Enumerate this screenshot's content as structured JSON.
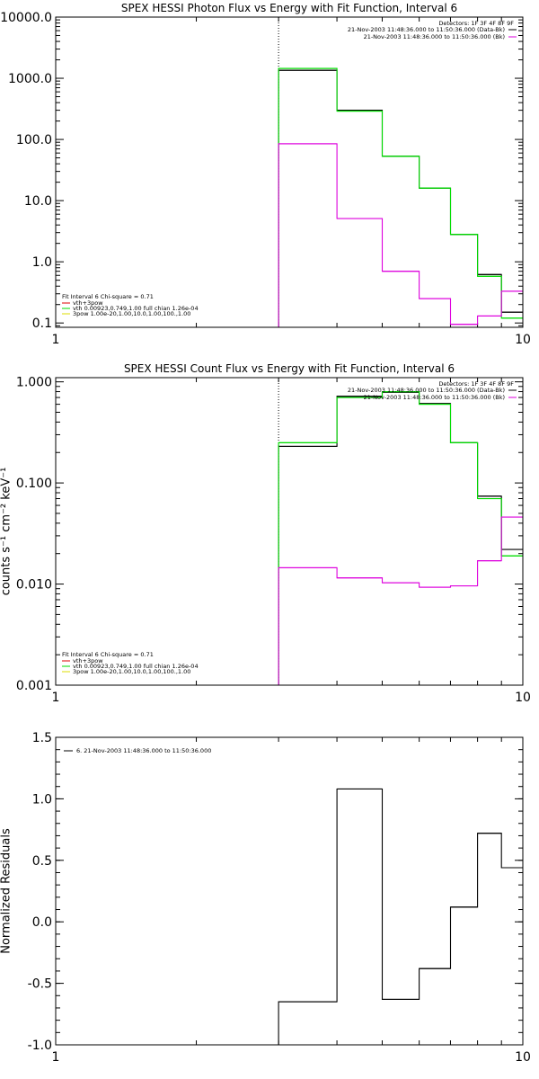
{
  "chart_data": [
    {
      "type": "line",
      "title": "SPEX HESSI Photon Flux vs Energy with Fit Function, Interval 6",
      "xscale": "log",
      "yscale": "log",
      "xlim": [
        1,
        10
      ],
      "ylim": [
        0.085,
        10000
      ],
      "xticks": [
        1,
        10
      ],
      "xtick_labels": [
        "1",
        "10"
      ],
      "yticks": [
        0.1,
        1,
        10,
        100,
        1000,
        10000
      ],
      "ytick_labels": [
        "0.1",
        "1.0",
        "10.0",
        "100.0",
        "1000.0",
        "10000.0"
      ],
      "vline_x": 3.0,
      "series": [
        {
          "color": "#000000",
          "bin_edges": [
            3.0,
            4.0,
            5.0,
            6.0,
            7.0,
            8.0,
            9.0,
            10.0
          ],
          "values": [
            1350,
            300,
            53,
            16,
            2.8,
            0.62,
            0.15
          ]
        },
        {
          "color": "#00dd00",
          "bin_edges": [
            3.0,
            4.0,
            5.0,
            6.0,
            7.0,
            8.0,
            9.0,
            10.0
          ],
          "values": [
            1450,
            290,
            53,
            16,
            2.8,
            0.58,
            0.12
          ]
        },
        {
          "color": "#dd00dd",
          "bin_edges": [
            3.0,
            4.0,
            5.0,
            6.0,
            7.0,
            8.0,
            9.0,
            10.0
          ],
          "values": [
            85,
            5.1,
            0.7,
            0.25,
            0.095,
            0.13,
            0.33
          ]
        }
      ],
      "legend_top": {
        "title": "Detectors: 1F 3F 4F 8F 9F",
        "items": [
          {
            "text": "21-Nov-2003 11:48:36.000 to 11:50:36.000 (Data-Bk)",
            "color": "#000000"
          },
          {
            "text": "21-Nov-2003 11:48:36.000 to 11:50:36.000 (Bk)",
            "color": "#dd00dd"
          }
        ]
      },
      "legend_bottom": {
        "title": "Fit Interval 6   Chi-square = 0.71",
        "items": [
          {
            "text": "vth+3pow",
            "color": "#dd0000"
          },
          {
            "text": "vth 0.00923,0.749,1.00   full chian 1.26e-04",
            "color": "#00dd00"
          },
          {
            "text": "3pow 1.00e-20,1.00,10.0,1.00,100.,1.00",
            "color": "#dddd00"
          }
        ]
      }
    },
    {
      "type": "line",
      "title": "SPEX HESSI Count Flux vs Energy with Fit Function, Interval 6",
      "ylabel": "counts s⁻¹ cm⁻² keV⁻¹",
      "xscale": "log",
      "yscale": "log",
      "xlim": [
        1,
        10
      ],
      "ylim": [
        0.001,
        1.1
      ],
      "xticks": [
        1,
        10
      ],
      "xtick_labels": [
        "1",
        "10"
      ],
      "yticks": [
        0.001,
        0.01,
        0.1,
        1
      ],
      "ytick_labels": [
        "0.001",
        "0.010",
        "0.100",
        "1.000"
      ],
      "vline_x": 3.0,
      "series": [
        {
          "color": "#000000",
          "bin_edges": [
            3.0,
            4.0,
            5.0,
            6.0,
            7.0,
            8.0,
            9.0,
            10.0
          ],
          "values": [
            0.23,
            0.72,
            0.79,
            0.61,
            0.25,
            0.074,
            0.022
          ]
        },
        {
          "color": "#00dd00",
          "bin_edges": [
            3.0,
            4.0,
            5.0,
            6.0,
            7.0,
            8.0,
            9.0,
            10.0
          ],
          "values": [
            0.25,
            0.7,
            0.8,
            0.6,
            0.25,
            0.07,
            0.019
          ]
        },
        {
          "color": "#dd00dd",
          "bin_edges": [
            3.0,
            4.0,
            5.0,
            6.0,
            7.0,
            8.0,
            9.0,
            10.0
          ],
          "values": [
            0.0145,
            0.0115,
            0.0103,
            0.0093,
            0.0096,
            0.017,
            0.046
          ]
        }
      ],
      "legend_top": {
        "title": "Detectors: 1F 3F 4F 8F 9F",
        "items": [
          {
            "text": "21-Nov-2003 11:48:36.000 to 11:50:36.000 (Data-Bk)",
            "color": "#000000"
          },
          {
            "text": "21-Nov-2003 11:48:36.000 to 11:50:36.000 (Bk)",
            "color": "#dd00dd"
          }
        ]
      },
      "legend_bottom": {
        "title": "Fit Interval 6   Chi-square = 0.71",
        "items": [
          {
            "text": "vth+3pow",
            "color": "#dd0000"
          },
          {
            "text": "vth 0.00923,0.749,1.00   full chian 1.26e-04",
            "color": "#00dd00"
          },
          {
            "text": "3pow 1.00e-20,1.00,10.0,1.00,100.,1.00",
            "color": "#dddd00"
          }
        ]
      }
    },
    {
      "type": "line",
      "title": "",
      "ylabel": "Normalized Residuals",
      "xscale": "log",
      "yscale": "linear",
      "xlim": [
        1,
        10
      ],
      "ylim": [
        -1.0,
        1.5
      ],
      "xticks": [
        1,
        10
      ],
      "xtick_labels": [
        "1",
        "10"
      ],
      "yticks": [
        -1.0,
        -0.5,
        0.0,
        0.5,
        1.0,
        1.5
      ],
      "ytick_labels": [
        "-1.0",
        "-0.5",
        "0.0",
        "0.5",
        "1.0",
        "1.5"
      ],
      "series": [
        {
          "color": "#000000",
          "bin_edges": [
            3.0,
            4.0,
            5.0,
            6.0,
            7.0,
            8.0,
            9.0,
            10.0
          ],
          "values": [
            -0.65,
            1.08,
            -0.63,
            -0.38,
            0.12,
            0.72,
            0.44
          ]
        }
      ],
      "legend_top_left": {
        "items": [
          {
            "text": "6. 21-Nov-2003 11:48:36.000 to 11:50:36.000",
            "color": "#000000"
          }
        ]
      }
    }
  ]
}
